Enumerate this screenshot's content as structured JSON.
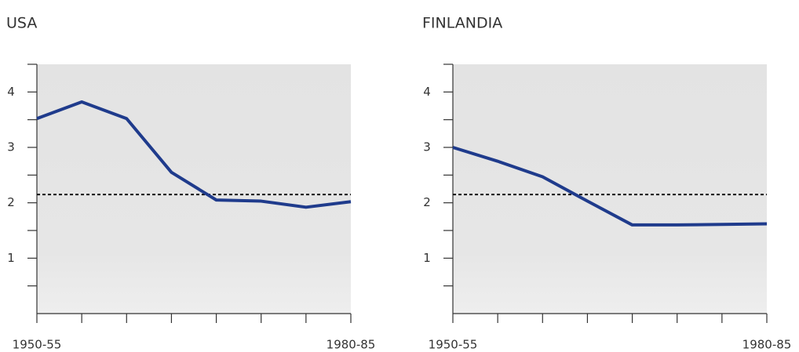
{
  "chart_data": [
    {
      "type": "line",
      "title": "USA",
      "categories": [
        "1950-55",
        null,
        null,
        null,
        null,
        null,
        null,
        "1980-85"
      ],
      "series": [
        {
          "color": "#1f3b8c",
          "values": [
            3.52,
            3.82,
            3.52,
            2.55,
            2.05,
            2.03,
            1.92,
            2.02
          ]
        }
      ],
      "ylim": [
        0,
        4.5
      ],
      "yticks": [
        1,
        2,
        3,
        4
      ],
      "y_minor_ticks": [
        0.5,
        1.5,
        2.5,
        3.5,
        4.5
      ],
      "reference_line": 2.15
    },
    {
      "type": "line",
      "title": "FINLANDIA",
      "categories": [
        "1950-55",
        null,
        null,
        null,
        null,
        null,
        null,
        "1980-85"
      ],
      "series": [
        {
          "color": "#1f3b8c",
          "values": [
            3.0,
            2.75,
            2.47,
            2.03,
            1.6,
            1.6,
            1.61,
            1.62
          ]
        }
      ],
      "ylim": [
        0,
        4.5
      ],
      "yticks": [
        1,
        2,
        3,
        4
      ],
      "y_minor_ticks": [
        0.5,
        1.5,
        2.5,
        3.5,
        4.5
      ],
      "reference_line": 2.15
    }
  ]
}
